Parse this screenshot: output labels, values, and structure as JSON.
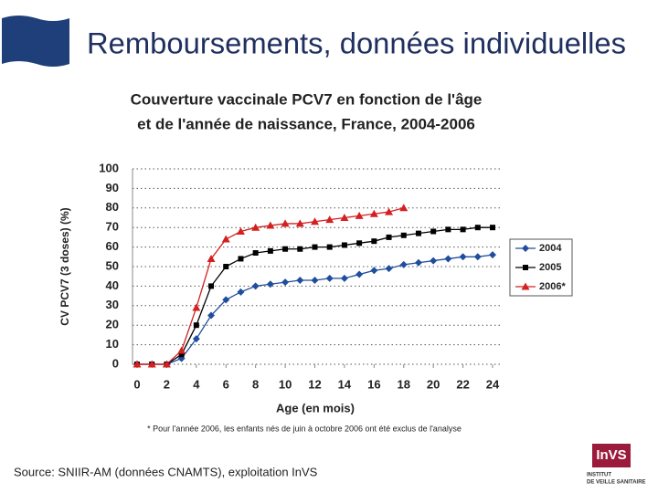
{
  "slide": {
    "title": "Remboursements, données individuelles",
    "source": "Source: SNIIR-AM (données CNAMTS), exploitation InVS"
  },
  "logo": {
    "name": "InVS",
    "line1": "INSTITUT",
    "line2": "DE VEILLE SANITAIRE"
  },
  "chart_data": {
    "type": "line",
    "title": [
      "Couverture vaccinale PCV7 en fonction de l'âge",
      "et de l'année de naissance, France, 2004-2006"
    ],
    "x_label": "Age (en mois)",
    "y_label": "CV PCV7 (3 doses) (%)",
    "footnote": "* Pour l'année 2006, les enfants nés de juin à octobre 2006 ont été exclus de l'analyse",
    "x": [
      0,
      1,
      2,
      3,
      4,
      5,
      6,
      7,
      8,
      9,
      10,
      11,
      12,
      13,
      14,
      15,
      16,
      17,
      18,
      19,
      20,
      21,
      22,
      23,
      24
    ],
    "series": [
      {
        "name": "2004",
        "color": "#1f4e9e",
        "marker": "diamond",
        "values": [
          0,
          0,
          0,
          3,
          13,
          25,
          33,
          37,
          40,
          41,
          42,
          43,
          43,
          44,
          44,
          46,
          48,
          49,
          51,
          52,
          53,
          54,
          55,
          55,
          56
        ]
      },
      {
        "name": "2005",
        "color": "#000000",
        "marker": "square",
        "values": [
          0,
          0,
          0,
          5,
          20,
          40,
          50,
          54,
          57,
          58,
          59,
          59,
          60,
          60,
          61,
          62,
          63,
          65,
          66,
          67,
          68,
          69,
          69,
          70,
          70
        ]
      },
      {
        "name": "2006*",
        "color": "#d42020",
        "marker": "triangle",
        "values": [
          0,
          0,
          0,
          7,
          29,
          54,
          64,
          68,
          70,
          71,
          72,
          72,
          73,
          74,
          75,
          76,
          77,
          78,
          80,
          null,
          null,
          null,
          null,
          null,
          null
        ]
      }
    ],
    "xlim": [
      0,
      24
    ],
    "xticks": [
      0,
      2,
      4,
      6,
      8,
      10,
      12,
      14,
      16,
      18,
      20,
      22,
      24
    ],
    "ylim": [
      0,
      100
    ],
    "yticks": [
      0,
      10,
      20,
      30,
      40,
      50,
      60,
      70,
      80,
      90,
      100
    ],
    "grid": true,
    "legend": "right"
  }
}
